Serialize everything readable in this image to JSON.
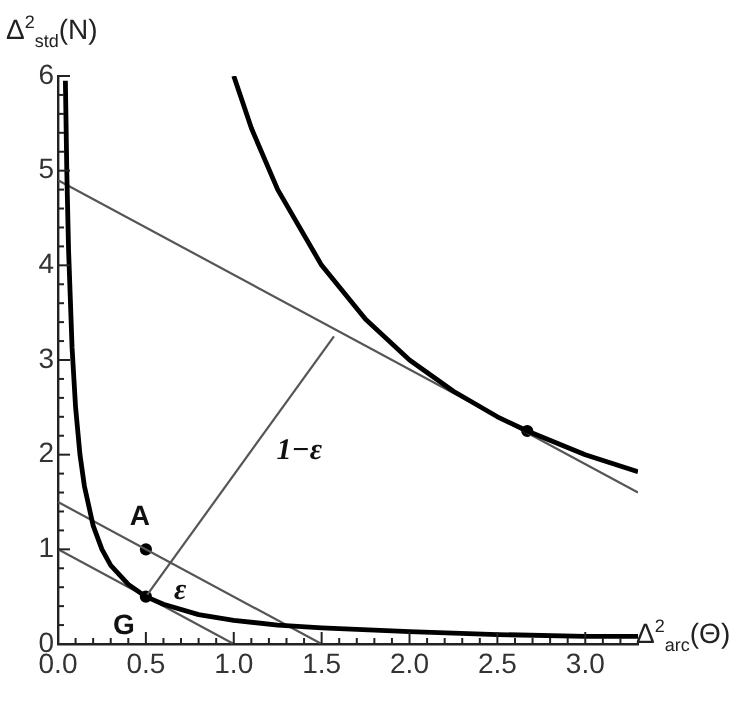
{
  "chart_data": {
    "type": "line",
    "xlabel": "Δ$^{2}$$_{arc}$(Θ)",
    "ylabel": "Δ$^{2}$$_{std}$(N)",
    "xlim": [
      0,
      3.3
    ],
    "ylim": [
      0,
      6
    ],
    "xticks": [
      {
        "value": 0,
        "label": "0.0"
      },
      {
        "value": 0.1,
        "label": null
      },
      {
        "value": 0.2,
        "label": null
      },
      {
        "value": 0.3,
        "label": null
      },
      {
        "value": 0.4,
        "label": null
      },
      {
        "value": 0.5,
        "label": "0.5"
      },
      {
        "value": 0.6,
        "label": null
      },
      {
        "value": 0.7,
        "label": null
      },
      {
        "value": 0.8,
        "label": null
      },
      {
        "value": 0.9,
        "label": null
      },
      {
        "value": 1,
        "label": "1.0"
      },
      {
        "value": 1.1,
        "label": null
      },
      {
        "value": 1.2,
        "label": null
      },
      {
        "value": 1.3,
        "label": null
      },
      {
        "value": 1.4,
        "label": null
      },
      {
        "value": 1.5,
        "label": "1.5"
      },
      {
        "value": 1.6,
        "label": null
      },
      {
        "value": 1.7,
        "label": null
      },
      {
        "value": 1.8,
        "label": null
      },
      {
        "value": 1.9,
        "label": null
      },
      {
        "value": 2,
        "label": "2.0"
      },
      {
        "value": 2.1,
        "label": null
      },
      {
        "value": 2.2,
        "label": null
      },
      {
        "value": 2.3,
        "label": null
      },
      {
        "value": 2.4,
        "label": null
      },
      {
        "value": 2.5,
        "label": "2.5"
      },
      {
        "value": 2.6,
        "label": null
      },
      {
        "value": 2.7,
        "label": null
      },
      {
        "value": 2.8,
        "label": null
      },
      {
        "value": 2.9,
        "label": null
      },
      {
        "value": 3,
        "label": "3.0"
      },
      {
        "value": 3.1,
        "label": null
      },
      {
        "value": 3.2,
        "label": null
      }
    ],
    "yticks": [
      0,
      {
        "value": 0.2,
        "label": null
      },
      {
        "value": 0.4,
        "label": null
      },
      {
        "value": 0.6,
        "label": null
      },
      {
        "value": 0.8,
        "label": null
      },
      1,
      {
        "value": 1.2,
        "label": null
      },
      {
        "value": 1.4,
        "label": null
      },
      {
        "value": 1.6,
        "label": null
      },
      {
        "value": 1.8,
        "label": null
      },
      2,
      {
        "value": 2.2,
        "label": null
      },
      {
        "value": 2.4,
        "label": null
      },
      {
        "value": 2.6,
        "label": null
      },
      {
        "value": 2.8,
        "label": null
      },
      3,
      {
        "value": 3.2,
        "label": null
      },
      {
        "value": 3.4,
        "label": null
      },
      {
        "value": 3.6,
        "label": null
      },
      {
        "value": 3.8,
        "label": null
      },
      4,
      {
        "value": 4.2,
        "label": null
      },
      {
        "value": 4.4,
        "label": null
      },
      {
        "value": 4.6,
        "label": null
      },
      {
        "value": 4.8,
        "label": null
      },
      5,
      {
        "value": 5.2,
        "label": null
      },
      {
        "value": 5.4,
        "label": null
      },
      {
        "value": 5.6,
        "label": null
      },
      {
        "value": 5.8,
        "label": null
      },
      6
    ],
    "grid": false,
    "legend": false,
    "marker": "none",
    "line_style": "solid",
    "series": [
      {
        "color": "#000000",
        "x": [
          0.042,
          0.05,
          0.06,
          0.08,
          0.1,
          0.125,
          0.15,
          0.2,
          0.25,
          0.3,
          0.4,
          0.5,
          0.6,
          0.8,
          1.0,
          1.25,
          1.5,
          2.0,
          2.5,
          3.0,
          3.3
        ],
        "values": [
          5.95,
          5,
          4.17,
          3.13,
          2.5,
          2,
          1.67,
          1.25,
          1,
          0.83,
          0.63,
          0.5,
          0.42,
          0.31,
          0.25,
          0.2,
          0.17,
          0.13,
          0.1,
          0.08,
          0.08
        ]
      },
      {
        "color": "#000000",
        "x": [
          1.0,
          1.1,
          1.25,
          1.5,
          1.75,
          2.0,
          2.25,
          2.5,
          2.67,
          3.0,
          3.3
        ],
        "values": [
          6,
          5.45,
          4.8,
          4,
          3.43,
          3,
          2.67,
          2.4,
          2.25,
          2,
          1.82
        ]
      },
      {
        "color": "#555555",
        "x": [
          0,
          1
        ],
        "values": [
          1,
          0
        ]
      },
      {
        "color": "#555555",
        "x": [
          0,
          1.5
        ],
        "values": [
          1.5,
          0
        ]
      },
      {
        "color": "#555555",
        "x": [
          0,
          3.3
        ],
        "values": [
          4.9,
          1.6
        ]
      },
      {
        "color": "#555555",
        "x": [
          0.5,
          1.57
        ],
        "values": [
          0.5,
          3.25
        ]
      },
      {
        "type": "scatter",
        "marker": "circle",
        "color": "#000000",
        "x": [
          0.5,
          0.5,
          2.67
        ],
        "values": [
          1.0,
          0.5,
          2.25
        ]
      }
    ],
    "annotations": [
      {
        "text": "A",
        "x": 0.5,
        "y": 1.0
      },
      {
        "text": "G",
        "x": 0.5,
        "y": 0.5
      },
      {
        "text": "ε",
        "x": 0.57,
        "y": 0.68
      },
      {
        "text": "1−ε",
        "x": 1.1,
        "y": 2.04
      }
    ]
  }
}
